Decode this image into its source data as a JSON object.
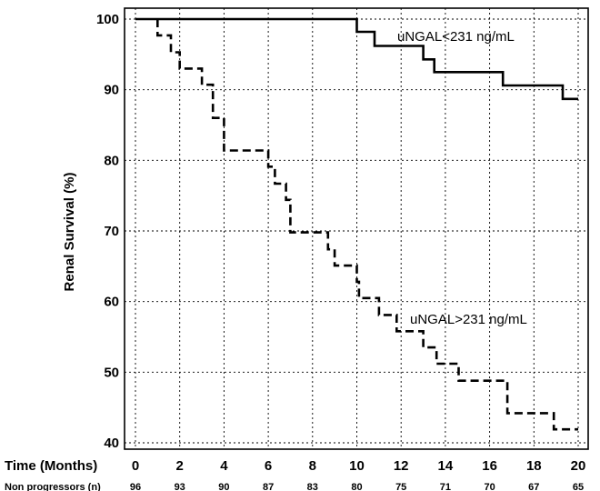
{
  "chart_data": {
    "type": "line",
    "subtype": "kaplan-meier step",
    "ylabel": "Renal Survival (%)",
    "xlabel": "Time (Months)",
    "xlim": [
      0,
      20
    ],
    "ylim": [
      39,
      101
    ],
    "x_ticks": [
      0,
      2,
      4,
      6,
      8,
      10,
      12,
      14,
      16,
      18,
      20
    ],
    "y_ticks": [
      40,
      50,
      60,
      70,
      80,
      90,
      100
    ],
    "grid": true,
    "series": [
      {
        "name": "uNGAL<231 ng/mL",
        "line_style": "solid",
        "points": [
          [
            0,
            100
          ],
          [
            10,
            100
          ],
          [
            10,
            98.2
          ],
          [
            10.8,
            98.2
          ],
          [
            10.8,
            96.2
          ],
          [
            13,
            96.2
          ],
          [
            13,
            94.3
          ],
          [
            13.5,
            94.3
          ],
          [
            13.5,
            92.5
          ],
          [
            16.6,
            92.5
          ],
          [
            16.6,
            90.6
          ],
          [
            19.3,
            90.6
          ],
          [
            19.3,
            88.7
          ],
          [
            20,
            88.7
          ]
        ]
      },
      {
        "name": "uNGAL>231 ng/mL",
        "line_style": "dashed",
        "points": [
          [
            1,
            100
          ],
          [
            1,
            97.7
          ],
          [
            1.6,
            97.7
          ],
          [
            1.6,
            95.3
          ],
          [
            2,
            95.3
          ],
          [
            2,
            93
          ],
          [
            3,
            93
          ],
          [
            3,
            90.7
          ],
          [
            3.5,
            90.7
          ],
          [
            3.5,
            86
          ],
          [
            4,
            86
          ],
          [
            4,
            81.4
          ],
          [
            6,
            81.4
          ],
          [
            6,
            79.1
          ],
          [
            6.3,
            79.1
          ],
          [
            6.3,
            76.7
          ],
          [
            6.8,
            76.7
          ],
          [
            6.8,
            74.4
          ],
          [
            7,
            74.4
          ],
          [
            7,
            69.8
          ],
          [
            8.7,
            69.8
          ],
          [
            8.7,
            67.4
          ],
          [
            9,
            67.4
          ],
          [
            9,
            65.1
          ],
          [
            10,
            65.1
          ],
          [
            10,
            62.8
          ],
          [
            10.1,
            62.8
          ],
          [
            10.1,
            60.5
          ],
          [
            11,
            60.5
          ],
          [
            11,
            58.1
          ],
          [
            11.8,
            58.1
          ],
          [
            11.8,
            55.8
          ],
          [
            13,
            55.8
          ],
          [
            13,
            53.5
          ],
          [
            13.6,
            53.5
          ],
          [
            13.6,
            51.2
          ],
          [
            14.6,
            51.2
          ],
          [
            14.6,
            48.8
          ],
          [
            16.8,
            48.8
          ],
          [
            16.8,
            44.2
          ],
          [
            18.9,
            44.2
          ],
          [
            18.9,
            41.9
          ],
          [
            20,
            41.9
          ]
        ]
      }
    ],
    "risk_table": {
      "label": "Non progressors (n)",
      "values": [
        "96",
        "93",
        "90",
        "87",
        "83",
        "80",
        "75",
        "71",
        "70",
        "67",
        "65"
      ]
    }
  }
}
